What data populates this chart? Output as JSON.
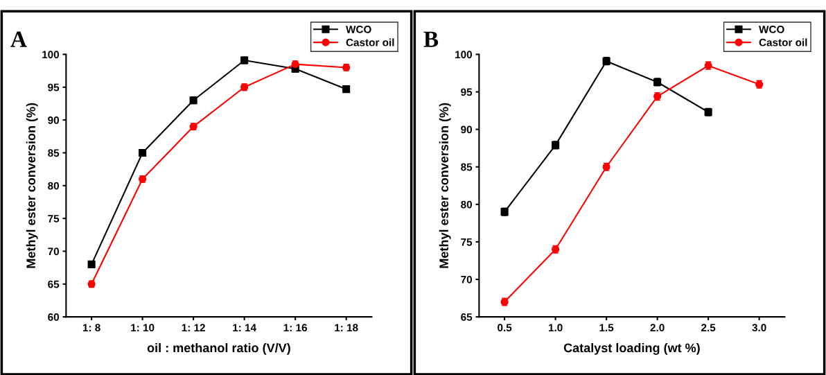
{
  "chart_data": [
    {
      "type": "line",
      "title": "A",
      "xlabel": "oil : methanol ratio (V/V)",
      "ylabel": "Methyl ester conversion (%)",
      "categories": [
        "1: 8",
        "1: 10",
        "1: 12",
        "1: 14",
        "1: 16",
        "1: 18"
      ],
      "ylim": [
        60,
        100
      ],
      "yticks": [
        60,
        65,
        70,
        75,
        80,
        85,
        90,
        95,
        100
      ],
      "legend": "top right",
      "grid": false,
      "series": [
        {
          "name": "WCO",
          "color": "#000000",
          "marker": "square",
          "values": [
            68,
            85,
            93,
            99.1,
            97.8,
            94.7
          ],
          "errors": [
            0.5,
            0.5,
            0.5,
            0.5,
            0.5,
            0.5
          ]
        },
        {
          "name": "Castor oil",
          "color": "#ff0000",
          "marker": "circle",
          "values": [
            65,
            81,
            89,
            95,
            98.5,
            98.0
          ],
          "errors": [
            0.5,
            0.5,
            0.5,
            0.5,
            0.5,
            0.5
          ]
        }
      ]
    },
    {
      "type": "line",
      "title": "B",
      "xlabel": "Catalyst loading (wt %)",
      "ylabel": "Methyl ester conversion (%)",
      "xlim": [
        0.25,
        3.25
      ],
      "xticks": [
        {
          "value": 0.5,
          "label": "0.5"
        },
        {
          "value": 1.0,
          "label": "1.0"
        },
        {
          "value": 1.5,
          "label": "1.5"
        },
        {
          "value": 2.0,
          "label": "2.0"
        },
        {
          "value": 2.5,
          "label": "2.5"
        },
        {
          "value": 3.0,
          "label": "3.0"
        }
      ],
      "ylim": [
        65,
        100
      ],
      "yticks": [
        65,
        70,
        75,
        80,
        85,
        90,
        95,
        100
      ],
      "legend": "top right",
      "grid": false,
      "series": [
        {
          "name": "WCO",
          "color": "#000000",
          "marker": "square",
          "x": [
            0.5,
            1.0,
            1.5,
            2.0,
            2.5
          ],
          "values": [
            79,
            87.9,
            99.1,
            96.3,
            92.3
          ],
          "errors": [
            0.5,
            0.5,
            0.5,
            0.5,
            0.5
          ]
        },
        {
          "name": "Castor oil",
          "color": "#ff0000",
          "marker": "circle",
          "x": [
            0.5,
            1.0,
            1.5,
            2.0,
            2.5,
            3.0
          ],
          "values": [
            67,
            74,
            85,
            94.4,
            98.5,
            96
          ],
          "errors": [
            0.5,
            0.5,
            0.5,
            0.5,
            0.5,
            0.5
          ]
        }
      ]
    }
  ]
}
